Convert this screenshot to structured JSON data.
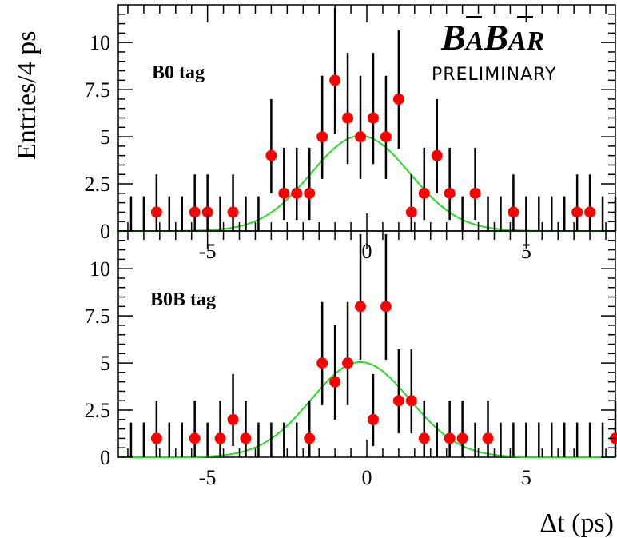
{
  "chart_data": [
    {
      "type": "scatter",
      "panel": "top",
      "tag_label": "B0 tag",
      "xlim": [
        -7.8,
        7.8
      ],
      "ylim": [
        0,
        12
      ],
      "yticks": [
        0,
        2.5,
        5,
        7.5,
        10
      ],
      "ytick_labels": [
        "0",
        "2.5",
        "5",
        "7.5",
        "10"
      ],
      "xticks": [
        -5,
        0,
        5
      ],
      "xtick_labels": [
        "-5",
        "0",
        "5"
      ],
      "ylabel": "Entries/4 ps",
      "x": [
        -6.6,
        -5.4,
        -5.0,
        -4.2,
        -3.0,
        -2.6,
        -2.2,
        -1.8,
        -1.4,
        -1.0,
        -0.6,
        -0.2,
        0.2,
        0.6,
        1.0,
        1.4,
        1.8,
        2.2,
        2.6,
        3.4,
        4.6,
        6.6,
        7.0
      ],
      "y": [
        1,
        1,
        1,
        1,
        4,
        2,
        2,
        2,
        5,
        8,
        6,
        5,
        6,
        5,
        7,
        1,
        2,
        4,
        2,
        2,
        1,
        1,
        1
      ],
      "zero_bins_x": [
        -7.4,
        -7.0,
        -6.2,
        -5.8,
        -4.6,
        -3.8,
        -3.4,
        3.0,
        3.8,
        4.2,
        5.0,
        5.4,
        5.8,
        6.2,
        7.4,
        7.8
      ],
      "fit": {
        "color": "#22dd22",
        "peak": 5.05,
        "mean": -0.2,
        "sigma": 1.55
      }
    },
    {
      "type": "scatter",
      "panel": "bottom",
      "tag_label": "B0B tag",
      "xlim": [
        -7.8,
        7.8
      ],
      "ylim": [
        0,
        12
      ],
      "yticks": [
        0,
        2.5,
        5,
        7.5,
        10
      ],
      "ytick_labels": [
        "0",
        "2.5",
        "5",
        "7.5",
        "10"
      ],
      "xticks": [
        -5,
        0,
        5
      ],
      "xtick_labels": [
        "-5",
        "0",
        "5"
      ],
      "xlabel": "Δt (ps)",
      "x": [
        -6.6,
        -5.4,
        -4.6,
        -4.2,
        -3.8,
        -1.8,
        -1.4,
        -1.0,
        -0.6,
        -0.2,
        0.2,
        0.6,
        1.0,
        1.4,
        1.8,
        2.6,
        3.0,
        3.8,
        7.8
      ],
      "y": [
        1,
        1,
        1,
        2,
        1,
        1,
        5,
        4,
        5,
        8,
        2,
        8,
        3,
        3,
        1,
        1,
        1,
        1,
        1
      ],
      "zero_bins_x": [
        -7.4,
        -7.0,
        -6.2,
        -5.8,
        -5.0,
        -3.4,
        -3.0,
        -2.6,
        -2.2,
        2.2,
        3.4,
        4.2,
        4.6,
        5.0,
        5.4,
        5.8,
        6.2,
        6.6,
        7.0,
        7.4
      ],
      "fit": {
        "color": "#22dd22",
        "peak": 5.05,
        "mean": -0.2,
        "sigma": 1.55
      }
    }
  ],
  "logo": {
    "b1": "B",
    "a1": "A",
    "b2": "B",
    "a2": "AR",
    "subtitle": "PRELIMINARY"
  },
  "colors": {
    "marker": "#ff0000",
    "errorbar": "#000000",
    "fit": "#22dd22",
    "frame": "#000000"
  }
}
